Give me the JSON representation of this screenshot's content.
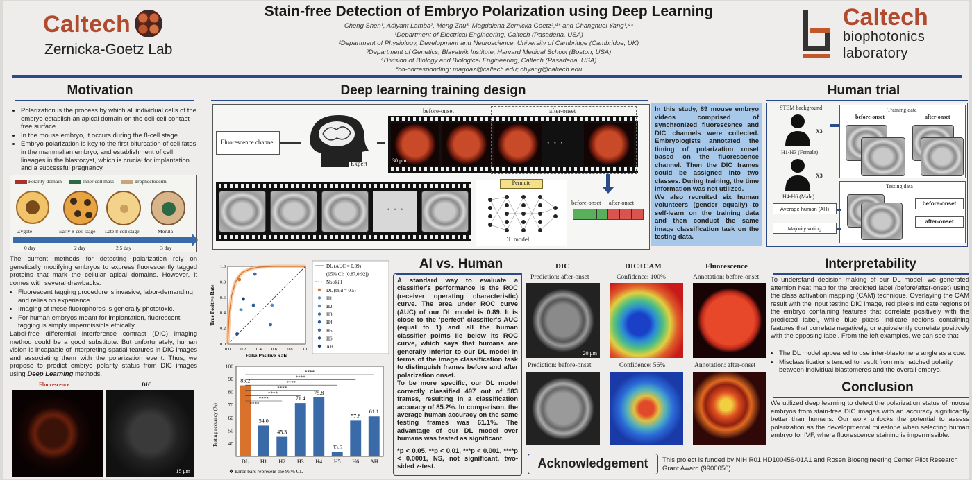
{
  "header": {
    "title": "Stain-free Detection of Embryo Polarization using Deep Learning",
    "authors_line": "Cheng Shen¹, Adiyant Lamba², Meng Zhu³, Magdalena Zernicka Goetz²,⁴* and Changhuei Yang¹,⁴*",
    "affil_1": "¹Department of Electrical Engineering, Caltech (Pasadena, USA)",
    "affil_2": "²Department of Physiology, Development and Neuroscience, University of Cambridge (Cambridge, UK)",
    "affil_3": "³Department of Genetics, Blavatnik Institute, Harvard Medical School (Boston, USA)",
    "affil_4": "⁴Division of Biology and Biological Engineering, Caltech (Pasadena, USA)",
    "corresponding": "*co-corresponding: magdaz@caltech.edu; chyang@caltech.edu",
    "left_logo_text": "Caltech",
    "left_lab": "Zernicka-Goetz Lab",
    "right_logo_caltech": "Caltech",
    "right_logo_line1": "biophotonics",
    "right_logo_line2": "laboratory"
  },
  "motivation": {
    "title": "Motivation",
    "bullets": [
      "Polarization is the process by which all individual cells of the embryo establish an apical domain on the cell-cell contact-free surface.",
      "In the mouse embryo, it occurs during the 8-cell stage.",
      "Embryo polarization is key to the first bifurcation of cell fates in the mammalian embryo, and establishment of cell lineages in the blastocyst, which is crucial for implantation and a successful pregnancy."
    ],
    "legend": [
      "Polarity domain",
      "Inner cell mass",
      "Trophectoderm"
    ],
    "stages": [
      "Zygote",
      "Early 8-cell stage",
      "Late 8-cell stage",
      "Morula"
    ],
    "days": [
      "0 day",
      "2 day",
      "2.5 day",
      "3 day"
    ],
    "para1": "The current methods for detecting polarization rely on genetically modifying embryos to express fluorescently tagged proteins that mark the cellular apical domains. However, it comes with several drawbacks.",
    "bullets2": [
      "Fluorescent tagging procedure is invasive, labor-demanding and relies on experience.",
      "Imaging of these fluorophores is generally phototoxic.",
      "For human embryos meant for implantation, fluorescent tagging is simply impermissible ethically."
    ],
    "para2_a": "Label-free differential interference contrast (DIC) imaging method could be a good substitute. But unfortunately, human vision is incapable of interpreting spatial features in DIC images and associating them with the polarization event. Thus, we propose to predict embryo polarity status from DIC images using ",
    "para2_b": "Deep Learning",
    "para2_c": " methods.",
    "img_label_left": "Fluorescence",
    "img_label_right": "DIC",
    "scale": "15 μm"
  },
  "dl_design": {
    "title": "Deep learning training design",
    "fluor_channel": "Fluorescence channel",
    "expert": "Expert",
    "before_onset": "before-onset",
    "after_onset": "after-onset",
    "scale": "30 μm",
    "permute": "Permute",
    "dl_model": "DL model",
    "out_before": "before-onset",
    "out_after": "after-onset",
    "dots": "· · ·"
  },
  "study_box": {
    "p1": "In this study, 89 mouse embryo videos comprised of synchronized fluorescence and DIC channels were collected. Embryologists annotated the timing of polarization onset based on the fluorescence channel. Then the DIC frames could be assigned into two classes. During training, the time information was not utilized.",
    "p2": "We also recruited six human volunteers (gender equally) to self-learn on the training data and then conduct the same image classification task on the testing data."
  },
  "human_trial": {
    "title": "Human trial",
    "stem": "STEM background",
    "training_data": "Training data",
    "before_onset": "before-onset",
    "after_onset": "after-onset",
    "x3a": "X3",
    "x3b": "X3",
    "female": "H1-H3 (Female)",
    "male": "H4-H6 (Male)",
    "testing_data": "Testing data",
    "avg": "Average human (AH)",
    "majority": "Majority voting",
    "btn_before": "before-onset",
    "btn_after": "after-onset"
  },
  "roc": {
    "xlabel": "False Positive Rate",
    "ylabel": "True Positive Rate",
    "legend": [
      "DL (AUC = 0.89)",
      "(95% CI: [0.87,0.92])",
      "No skill",
      "DL (thld = 0.5)",
      "H1",
      "H2",
      "H3",
      "H4",
      "H5",
      "H6",
      "AH"
    ],
    "ticks": [
      "0.0",
      "0.2",
      "0.4",
      "0.6",
      "0.8",
      "1.0"
    ]
  },
  "chart_data": [
    {
      "type": "line",
      "title": "",
      "xlabel": "False Positive Rate",
      "ylabel": "True Positive Rate",
      "xlim": [
        0,
        1
      ],
      "ylim": [
        0,
        1
      ],
      "series": [
        {
          "name": "DL (AUC = 0.89)",
          "x": [
            0,
            0.02,
            0.05,
            0.1,
            0.15,
            0.2,
            0.3,
            0.4,
            0.6,
            0.8,
            1.0
          ],
          "y": [
            0,
            0.4,
            0.62,
            0.8,
            0.88,
            0.93,
            0.97,
            0.99,
            1.0,
            1.0,
            1.0
          ]
        },
        {
          "name": "No skill",
          "x": [
            0,
            1
          ],
          "y": [
            0,
            1
          ]
        }
      ],
      "points": [
        {
          "name": "DL (thld = 0.5)",
          "x": 0.15,
          "y": 0.83
        },
        {
          "name": "H1",
          "x": 0.17,
          "y": 0.44
        },
        {
          "name": "H2",
          "x": 0.57,
          "y": 0.5
        },
        {
          "name": "H3",
          "x": 0.35,
          "y": 0.9
        },
        {
          "name": "H4",
          "x": 0.33,
          "y": 0.5
        },
        {
          "name": "H5",
          "x": 0.55,
          "y": 0.25
        },
        {
          "name": "H6",
          "x": 0.12,
          "y": 0.13
        },
        {
          "name": "AH",
          "x": 0.2,
          "y": 0.58
        }
      ]
    },
    {
      "type": "bar",
      "title": "",
      "xlabel": "",
      "ylabel": "Testing accuracy (%)",
      "categories": [
        "DL",
        "H1",
        "H2",
        "H3",
        "H4",
        "H5",
        "H6",
        "AH"
      ],
      "values": [
        85.2,
        54.0,
        45.3,
        71.4,
        75.8,
        33.6,
        57.8,
        61.1
      ],
      "ylim": [
        30,
        100
      ],
      "yticks": [
        "40",
        "50",
        "60",
        "70",
        "80",
        "90",
        "100"
      ],
      "significance": "****",
      "note": "❖ Error bars represent the 95% CL"
    }
  ],
  "ai_vs_human": {
    "title": "AI vs. Human",
    "p1": "A standard way to evaluate a classifier's performance is the ROC (receiver operating characteristic) curve. The area under ROC curve (AUC) of our DL model is 0.89. It is close to the 'perfect' classifier's AUC (equal to 1) and all the human classifier points lie below its ROC curve, which says that humans are generally inferior to our DL model in terms of the image classification task to distinguish frames before and after polarization onset.",
    "p2": "To be more specific, our DL model correctly classified 497 out of 583 frames, resulting in a classification accuracy of 85.2%. In comparison, the average human accuracy on the same testing frames was 61.1%. The advantage of our DL model over humans was tested as significant.",
    "footnote": "*p < 0.05, **p < 0.01, ***p < 0.001, ****p < 0.0001, NS, not significant, two-sided z-test."
  },
  "cam": {
    "col_dic": "DIC",
    "col_cam": "DIC+CAM",
    "col_fluor": "Fluorescence",
    "pred1": "Prediction: after-onset",
    "conf1": "Confidence: 100%",
    "ann1": "Annotation: before-onset",
    "pred2": "Prediction: before-onset",
    "conf2": "Confidence: 56%",
    "ann2": "Annotation: after-onset",
    "scale": "20 μm"
  },
  "interpretability": {
    "title": "Interpretability",
    "p1": "To understand decision making of our DL model, we generated attention heat map for the predicted label (before/after-onset) using the class activation mapping (CAM) technique. Overlaying the CAM result with the input testing DIC image, red pixels indicate regions of the embryo containing features that correlate positively with the predicted label, while blue pixels indicate regions containing features that correlate negatively, or equivalently correlate positively with the opposing label. From the left examples, we can see that",
    "bullets": [
      "The DL model appeared to use inter-blastomere angle as a cue.",
      "Misclassifications tended to result from mismatched polarity between individual blastomeres and the overall embryo."
    ]
  },
  "conclusion": {
    "title": "Conclusion",
    "p1": "We utilized deep learning to detect the polarization status of mouse embryos from stain-free DIC images with an accuracy significantly better than humans. Our work unlocks the potential to assess polarization as the developmental milestone when selecting human embryo for IVF, where fluorescence staining is impermissible."
  },
  "ack": {
    "title": "Acknowledgement",
    "text": "This project is funded by NIH R01 HD100456-01A1 and Rosen Bioengineering Center Pilot Research Grant Award (9900050)."
  },
  "colors": {
    "accent": "#2a4a88",
    "caltech": "#b24a2e",
    "dl_bar": "#d9722c",
    "human_bar": "#3a6aa8",
    "study_box": "#a7c8e8"
  }
}
